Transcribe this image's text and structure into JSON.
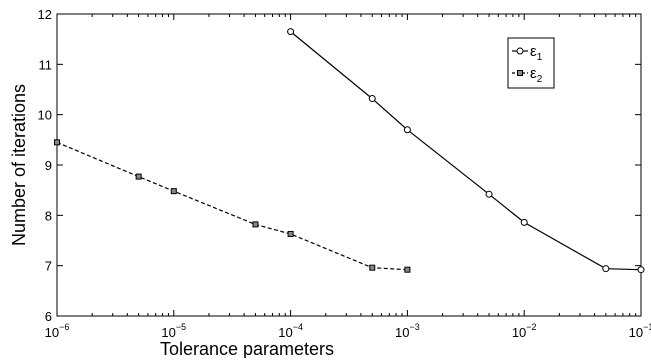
{
  "chart_data": {
    "type": "line",
    "xscale": "log",
    "xlim": [
      1e-06,
      0.1
    ],
    "ylim": [
      6,
      12
    ],
    "xlabel": "Tolerance parameters",
    "ylabel": "Number of iterations",
    "xticks": [
      {
        "value": 1e-06,
        "base": "10",
        "exp": "−6"
      },
      {
        "value": 1e-05,
        "base": "10",
        "exp": "−5"
      },
      {
        "value": 0.0001,
        "base": "10",
        "exp": "−4"
      },
      {
        "value": 0.001,
        "base": "10",
        "exp": "−3"
      },
      {
        "value": 0.01,
        "base": "10",
        "exp": "−2"
      },
      {
        "value": 0.1,
        "base": "10",
        "exp": "−1"
      }
    ],
    "yticks": [
      6,
      7,
      8,
      9,
      10,
      11,
      12
    ],
    "grid": false,
    "legend_position": "top-right",
    "series": [
      {
        "name": "ε",
        "subscript": "1",
        "line_style": "solid",
        "marker": "circle",
        "color": "#000000",
        "x": [
          0.0001,
          0.0005,
          0.001,
          0.005,
          0.01,
          0.05,
          0.1
        ],
        "y": [
          11.65,
          10.32,
          9.7,
          8.42,
          7.86,
          6.94,
          6.92
        ]
      },
      {
        "name": "ε",
        "subscript": "2",
        "line_style": "dashed",
        "marker": "square",
        "color": "#000000",
        "x": [
          1e-06,
          5e-06,
          1e-05,
          5e-05,
          0.0001,
          0.0005,
          0.001
        ],
        "y": [
          9.45,
          8.77,
          8.48,
          7.82,
          7.63,
          6.96,
          6.92
        ]
      }
    ]
  }
}
